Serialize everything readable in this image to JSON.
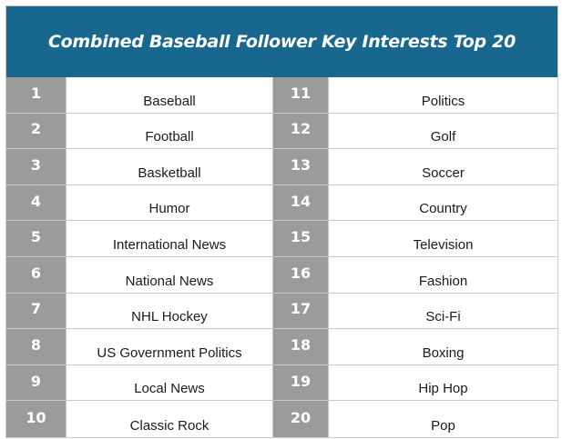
{
  "title": "Combined Baseball Follower Key Interests Top 20",
  "left_rows": [
    {
      "rank": "1",
      "interest": "Baseball"
    },
    {
      "rank": "2",
      "interest": "Football"
    },
    {
      "rank": "3",
      "interest": "Basketball"
    },
    {
      "rank": "4",
      "interest": "Humor"
    },
    {
      "rank": "5",
      "interest": "International News"
    },
    {
      "rank": "6",
      "interest": "National News"
    },
    {
      "rank": "7",
      "interest": "NHL Hockey"
    },
    {
      "rank": "8",
      "interest": "US Government Politics"
    },
    {
      "rank": "9",
      "interest": "Local News"
    },
    {
      "rank": "10",
      "interest": "Classic Rock"
    }
  ],
  "right_rows": [
    {
      "rank": "11",
      "interest": "Politics"
    },
    {
      "rank": "12",
      "interest": "Golf"
    },
    {
      "rank": "13",
      "interest": "Soccer"
    },
    {
      "rank": "14",
      "interest": "Country"
    },
    {
      "rank": "15",
      "interest": "Television"
    },
    {
      "rank": "16",
      "interest": "Fashion"
    },
    {
      "rank": "17",
      "interest": "Sci-Fi"
    },
    {
      "rank": "18",
      "interest": "Boxing"
    },
    {
      "rank": "19",
      "interest": "Hip Hop"
    },
    {
      "rank": "20",
      "interest": "Pop"
    }
  ],
  "colors": {
    "header_bg": "#17678f",
    "rank_bg": "#9b9b9b",
    "border": "#c8c8c8"
  }
}
